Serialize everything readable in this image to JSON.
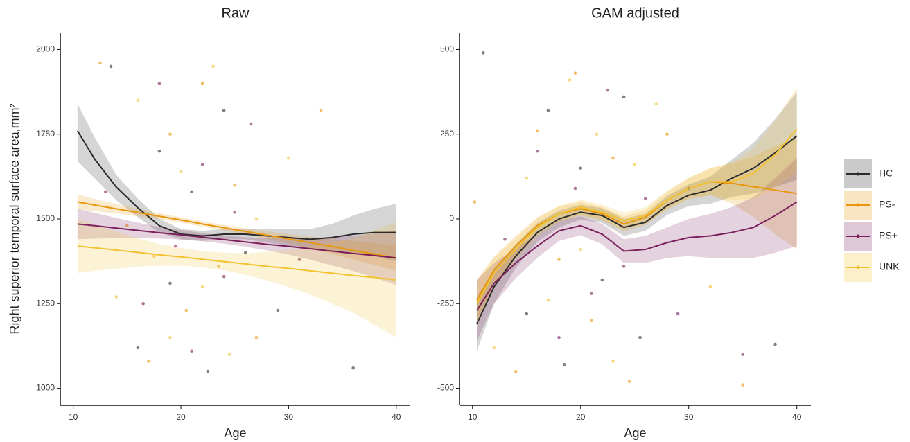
{
  "chart_data": [
    {
      "type": "line",
      "title": "Raw",
      "x_label": "Age",
      "y_label": "Right superior temporal surface area,mm²",
      "xlim": [
        8.8,
        41.3
      ],
      "ylim": [
        950,
        2050
      ],
      "xticks": [
        10,
        20,
        30,
        40
      ],
      "yticks": [
        1000,
        1250,
        1500,
        1750,
        2000
      ],
      "x": [
        10.4,
        12,
        14,
        16,
        18,
        20,
        22,
        24,
        26,
        28,
        30,
        32,
        34,
        36,
        38,
        40
      ],
      "series": [
        {
          "name": "HC",
          "color": "#2b2b2b",
          "values": [
            1760,
            1676,
            1594,
            1533,
            1480,
            1455,
            1450,
            1455,
            1455,
            1450,
            1445,
            1440,
            1445,
            1455,
            1460,
            1460
          ],
          "lower": [
            1670,
            1620,
            1555,
            1505,
            1460,
            1440,
            1435,
            1440,
            1440,
            1430,
            1420,
            1410,
            1405,
            1400,
            1390,
            1375
          ],
          "upper": [
            1840,
            1740,
            1630,
            1560,
            1500,
            1470,
            1465,
            1470,
            1470,
            1470,
            1470,
            1470,
            1485,
            1510,
            1530,
            1545
          ],
          "points_x": [
            13.5,
            16,
            18,
            19,
            21,
            22.5,
            24,
            26,
            29,
            36
          ],
          "points_y": [
            1950,
            1120,
            1700,
            1310,
            1580,
            1050,
            1820,
            1400,
            1230,
            1060
          ]
        },
        {
          "name": "PS-",
          "color": "#e8960c",
          "values": [
            1550,
            1541,
            1530,
            1519,
            1508,
            1497,
            1485,
            1474,
            1463,
            1452,
            1441,
            1430,
            1419,
            1407,
            1396,
            1385
          ],
          "lower": [
            1528,
            1523,
            1516,
            1508,
            1499,
            1489,
            1477,
            1466,
            1454,
            1441,
            1427,
            1412,
            1397,
            1380,
            1364,
            1347
          ],
          "upper": [
            1572,
            1559,
            1544,
            1530,
            1517,
            1505,
            1493,
            1482,
            1472,
            1463,
            1455,
            1448,
            1441,
            1434,
            1428,
            1423
          ],
          "points_x": [
            12.5,
            15,
            17,
            19,
            20.5,
            22,
            23.5,
            25,
            27,
            33
          ],
          "points_y": [
            1960,
            1480,
            1080,
            1750,
            1230,
            1900,
            1360,
            1600,
            1150,
            1820
          ]
        },
        {
          "name": "PS+",
          "color": "#7a1f5c",
          "values": [
            1485,
            1480,
            1473,
            1466,
            1459,
            1453,
            1446,
            1439,
            1432,
            1425,
            1419,
            1412,
            1405,
            1398,
            1392,
            1385
          ],
          "lower": [
            1440,
            1442,
            1443,
            1443,
            1442,
            1439,
            1434,
            1427,
            1418,
            1407,
            1395,
            1380,
            1363,
            1346,
            1327,
            1305
          ],
          "upper": [
            1530,
            1518,
            1503,
            1489,
            1476,
            1467,
            1458,
            1451,
            1446,
            1443,
            1443,
            1444,
            1447,
            1450,
            1457,
            1465
          ],
          "points_x": [
            13,
            16.5,
            18,
            19.5,
            21,
            22,
            24,
            25,
            26.5,
            31
          ],
          "points_y": [
            1580,
            1250,
            1900,
            1420,
            1110,
            1660,
            1330,
            1520,
            1780,
            1380
          ]
        },
        {
          "name": "UNK",
          "color": "#f2c230",
          "values": [
            1420,
            1415,
            1408,
            1401,
            1394,
            1388,
            1381,
            1374,
            1367,
            1360,
            1354,
            1347,
            1340,
            1333,
            1327,
            1320
          ],
          "lower": [
            1340,
            1347,
            1353,
            1359,
            1362,
            1362,
            1357,
            1348,
            1335,
            1318,
            1299,
            1277,
            1250,
            1223,
            1187,
            1150
          ],
          "upper": [
            1500,
            1483,
            1463,
            1443,
            1426,
            1414,
            1405,
            1400,
            1399,
            1402,
            1409,
            1417,
            1430,
            1443,
            1467,
            1490
          ],
          "points_x": [
            14,
            16,
            17.5,
            19,
            20,
            22,
            23,
            24.5,
            27,
            30
          ],
          "points_y": [
            1270,
            1850,
            1390,
            1150,
            1640,
            1300,
            1950,
            1100,
            1500,
            1680
          ]
        }
      ]
    },
    {
      "type": "line",
      "title": "GAM adjusted",
      "x_label": "Age",
      "xlim": [
        8.8,
        41.3
      ],
      "ylim": [
        -550,
        550
      ],
      "xticks": [
        10,
        20,
        30,
        40
      ],
      "yticks": [
        -500,
        -250,
        0,
        250,
        500
      ],
      "x": [
        10.4,
        12,
        14,
        16,
        18,
        20,
        22,
        24,
        26,
        28,
        30,
        32,
        34,
        36,
        38,
        40
      ],
      "series": [
        {
          "name": "HC",
          "color": "#2b2b2b",
          "values": [
            -310,
            -200,
            -110,
            -40,
            0,
            20,
            10,
            -25,
            -10,
            40,
            70,
            85,
            120,
            150,
            195,
            245
          ],
          "lower": [
            -390,
            -250,
            -145,
            -68,
            -25,
            -2,
            -12,
            -50,
            -35,
            12,
            38,
            45,
            65,
            75,
            95,
            115
          ],
          "upper": [
            -230,
            -150,
            -75,
            -12,
            25,
            42,
            32,
            0,
            15,
            68,
            102,
            125,
            175,
            225,
            295,
            375
          ],
          "points_x": [
            11,
            15,
            17,
            18.5,
            20,
            22,
            24,
            25.5,
            30,
            38
          ],
          "points_y": [
            490,
            -280,
            320,
            -430,
            150,
            -180,
            360,
            -350,
            90,
            -370
          ]
        },
        {
          "name": "PS-",
          "color": "#e8960c",
          "values": [
            -240,
            -150,
            -80,
            -20,
            15,
            30,
            15,
            -15,
            5,
            55,
            90,
            110,
            105,
            95,
            85,
            75
          ],
          "lower": [
            -300,
            -190,
            -110,
            -45,
            -7,
            10,
            -5,
            -37,
            -17,
            30,
            60,
            70,
            45,
            5,
            -45,
            -90
          ],
          "upper": [
            -180,
            -110,
            -50,
            5,
            37,
            50,
            35,
            7,
            27,
            80,
            120,
            150,
            165,
            185,
            215,
            240
          ],
          "points_x": [
            10.2,
            14,
            16,
            18,
            19.5,
            21,
            23,
            24.5,
            28,
            35
          ],
          "points_y": [
            50,
            -450,
            260,
            -120,
            430,
            -300,
            180,
            -480,
            250,
            -490
          ]
        },
        {
          "name": "PS+",
          "color": "#7a1f5c",
          "values": [
            -270,
            -190,
            -130,
            -80,
            -35,
            -20,
            -45,
            -95,
            -90,
            -70,
            -55,
            -50,
            -40,
            -25,
            10,
            50
          ],
          "lower": [
            -360,
            -250,
            -175,
            -115,
            -65,
            -48,
            -75,
            -130,
            -130,
            -115,
            -110,
            -115,
            -115,
            -115,
            -100,
            -80
          ],
          "upper": [
            -180,
            -130,
            -85,
            -45,
            -5,
            8,
            -15,
            -60,
            -50,
            -25,
            0,
            15,
            35,
            65,
            120,
            180
          ],
          "points_x": [
            13,
            16,
            18,
            19.5,
            21,
            22.5,
            24,
            26,
            29,
            35
          ],
          "points_y": [
            -60,
            200,
            -350,
            90,
            -220,
            380,
            -140,
            60,
            -280,
            -400
          ]
        },
        {
          "name": "UNK",
          "color": "#f2c230",
          "values": [
            -250,
            -160,
            -90,
            -25,
            15,
            35,
            20,
            -5,
            10,
            55,
            90,
            110,
            110,
            135,
            190,
            265
          ],
          "lower": [
            -315,
            -205,
            -122,
            -51,
            -9,
            13,
            -2,
            -29,
            -15,
            27,
            58,
            70,
            55,
            60,
            90,
            140
          ],
          "upper": [
            -185,
            -115,
            -58,
            1,
            39,
            57,
            42,
            19,
            35,
            83,
            122,
            150,
            165,
            210,
            290,
            390
          ],
          "points_x": [
            12,
            15,
            17,
            19,
            20,
            21.5,
            23,
            25,
            27,
            32
          ],
          "points_y": [
            -380,
            120,
            -240,
            410,
            -90,
            250,
            -420,
            160,
            340,
            -200
          ]
        }
      ]
    }
  ]
}
